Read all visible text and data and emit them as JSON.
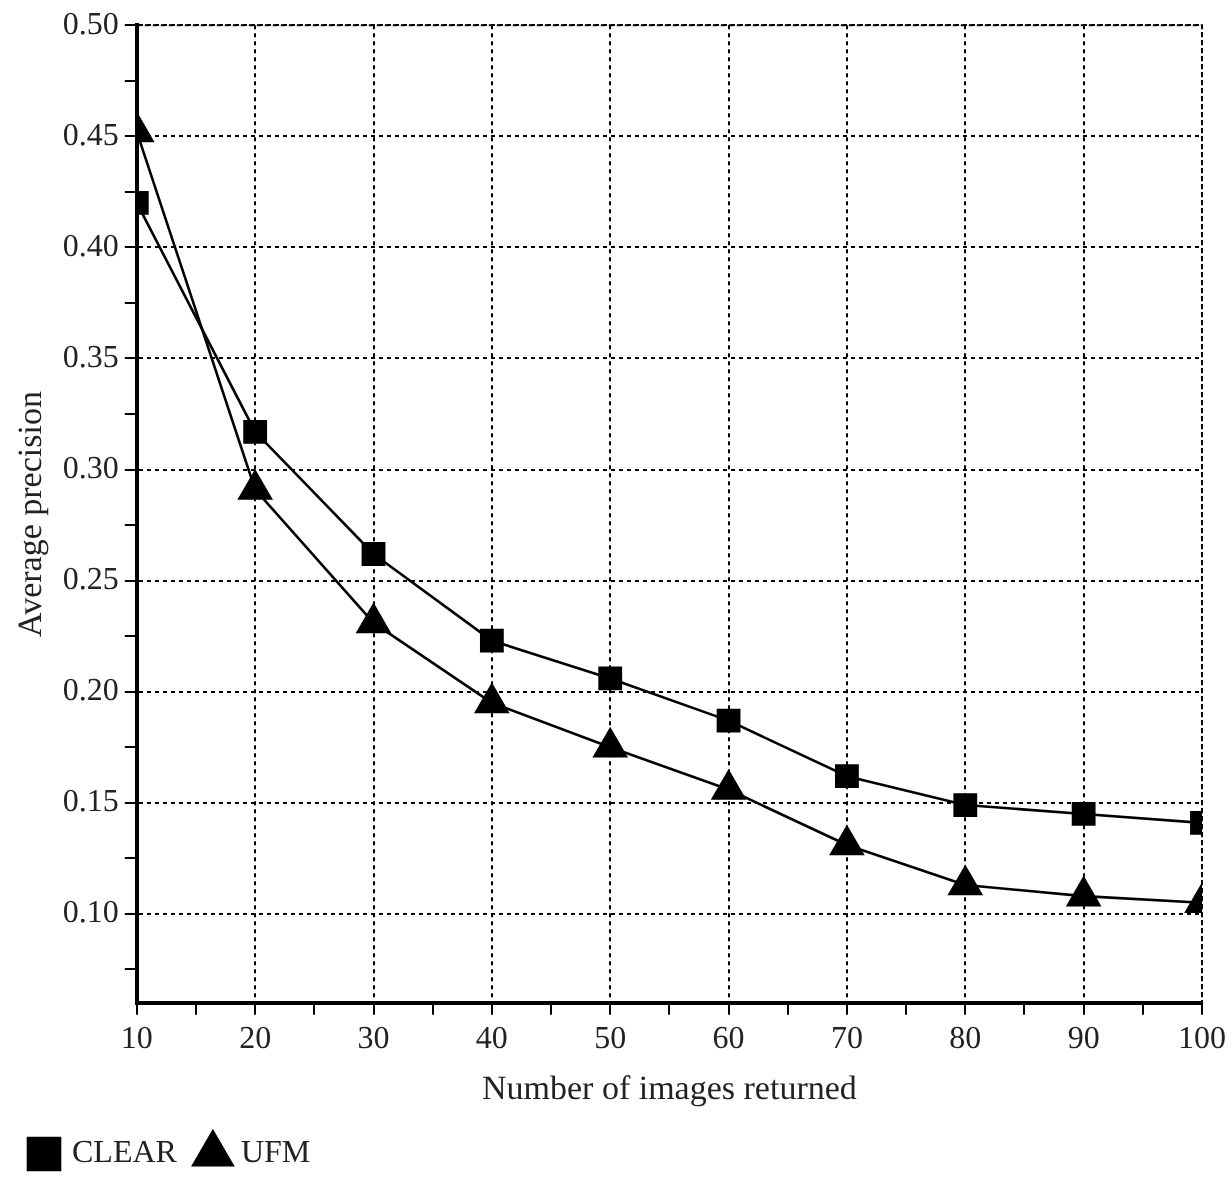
{
  "chart_data": {
    "type": "line",
    "xlabel": "Number of images returned",
    "ylabel": "Average precision",
    "x": [
      10,
      20,
      30,
      40,
      50,
      60,
      70,
      80,
      90,
      100
    ],
    "series": [
      {
        "name": "CLEAR",
        "color": "#000000",
        "marker": "square",
        "values": [
          0.42,
          0.317,
          0.262,
          0.223,
          0.206,
          0.187,
          0.162,
          0.149,
          0.145,
          0.141
        ]
      },
      {
        "name": "UFM",
        "color": "#000000",
        "marker": "triangle",
        "values": [
          0.452,
          0.291,
          0.231,
          0.195,
          0.175,
          0.156,
          0.131,
          0.113,
          0.108,
          0.105
        ]
      }
    ],
    "xlim": [
      10,
      100
    ],
    "xticks": [
      10,
      {
        "value": 15,
        "label": null
      },
      20,
      {
        "value": 25,
        "label": null
      },
      30,
      {
        "value": 35,
        "label": null
      },
      40,
      {
        "value": 45,
        "label": null
      },
      50,
      {
        "value": 55,
        "label": null
      },
      60,
      {
        "value": 65,
        "label": null
      },
      70,
      {
        "value": 75,
        "label": null
      },
      80,
      {
        "value": 85,
        "label": null
      },
      90,
      {
        "value": 95,
        "label": null
      },
      100
    ],
    "ylim": [
      0.06,
      0.5
    ],
    "yticks": [
      {
        "value": 0.075,
        "label": null
      },
      {
        "value": 0.1,
        "label": "0.10"
      },
      {
        "value": 0.125,
        "label": null
      },
      {
        "value": 0.15,
        "label": "0.15"
      },
      {
        "value": 0.175,
        "label": null
      },
      {
        "value": 0.2,
        "label": "0.20"
      },
      {
        "value": 0.225,
        "label": null
      },
      {
        "value": 0.25,
        "label": "0.25"
      },
      {
        "value": 0.275,
        "label": null
      },
      {
        "value": 0.3,
        "label": "0.30"
      },
      {
        "value": 0.325,
        "label": null
      },
      {
        "value": 0.35,
        "label": "0.35"
      },
      {
        "value": 0.375,
        "label": null
      },
      {
        "value": 0.4,
        "label": "0.40"
      },
      {
        "value": 0.425,
        "label": null
      },
      {
        "value": 0.45,
        "label": "0.45"
      },
      {
        "value": 0.475,
        "label": null
      },
      {
        "value": 0.5,
        "label": "0.50"
      }
    ],
    "grid": true,
    "legend": "bottom left",
    "line_style": "solid"
  }
}
